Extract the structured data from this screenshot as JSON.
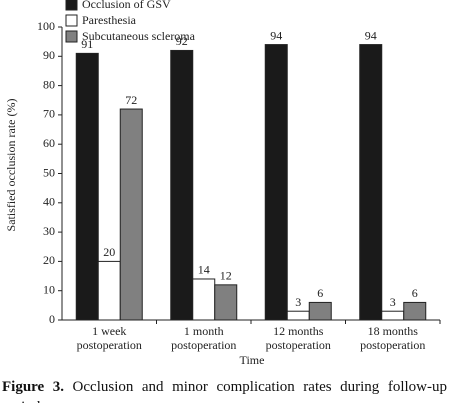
{
  "chart_data": {
    "type": "bar",
    "x_label": "Time",
    "y_label": "Satisfied occlusion rate (%)",
    "categories": [
      "1 week postoperation",
      "1 month postoperation",
      "12 months postoperation",
      "18 months postoperation"
    ],
    "series": [
      {
        "name": "Occlusion of GSV",
        "color": "#1a1a1a",
        "values": [
          91,
          92,
          94,
          94
        ]
      },
      {
        "name": "Paresthesia",
        "color": "#ffffff",
        "values": [
          20,
          14,
          3,
          3
        ]
      },
      {
        "name": "Subcutaneous scleroma",
        "color": "#808080",
        "values": [
          72,
          12,
          6,
          6
        ]
      }
    ],
    "ylim": [
      0,
      100
    ],
    "yticks": [
      0,
      10,
      20,
      30,
      40,
      50,
      60,
      70,
      80,
      90,
      100
    ],
    "legend": "top-left"
  },
  "caption": {
    "label": "Figure 3.",
    "text": "Occlusion and minor complication rates during follow-up period"
  }
}
